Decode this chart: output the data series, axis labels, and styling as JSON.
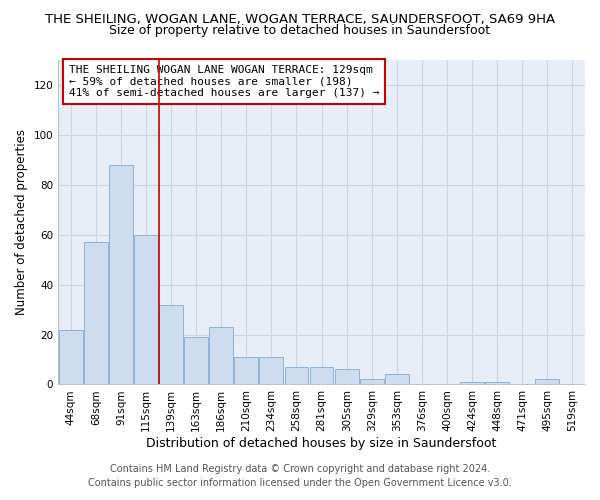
{
  "title": "THE SHEILING, WOGAN LANE, WOGAN TERRACE, SAUNDERSFOOT, SA69 9HA",
  "subtitle": "Size of property relative to detached houses in Saundersfoot",
  "xlabel": "Distribution of detached houses by size in Saundersfoot",
  "ylabel": "Number of detached properties",
  "footer_line1": "Contains HM Land Registry data © Crown copyright and database right 2024.",
  "footer_line2": "Contains public sector information licensed under the Open Government Licence v3.0.",
  "categories": [
    "44sqm",
    "68sqm",
    "91sqm",
    "115sqm",
    "139sqm",
    "163sqm",
    "186sqm",
    "210sqm",
    "234sqm",
    "258sqm",
    "281sqm",
    "305sqm",
    "329sqm",
    "353sqm",
    "376sqm",
    "400sqm",
    "424sqm",
    "448sqm",
    "471sqm",
    "495sqm",
    "519sqm"
  ],
  "values": [
    22,
    57,
    88,
    60,
    32,
    19,
    23,
    11,
    11,
    7,
    7,
    6,
    2,
    4,
    0,
    0,
    1,
    1,
    0,
    2,
    0
  ],
  "bar_color": "#cddcee",
  "bar_edge_color": "#8bb4d8",
  "grid_color": "#c8d4e8",
  "bg_color": "#e8eef8",
  "vline_x_index": 4,
  "vline_color": "#cc0000",
  "annotation_text": "THE SHEILING WOGAN LANE WOGAN TERRACE: 129sqm\n← 59% of detached houses are smaller (198)\n41% of semi-detached houses are larger (137) →",
  "annotation_box_color": "#ffffff",
  "annotation_box_edge": "#cc0000",
  "ylim": [
    0,
    130
  ],
  "yticks": [
    0,
    20,
    40,
    60,
    80,
    100,
    120
  ],
  "title_fontsize": 9.5,
  "subtitle_fontsize": 9,
  "xlabel_fontsize": 9,
  "ylabel_fontsize": 8.5,
  "tick_fontsize": 7.5,
  "annotation_fontsize": 8,
  "footer_fontsize": 7
}
